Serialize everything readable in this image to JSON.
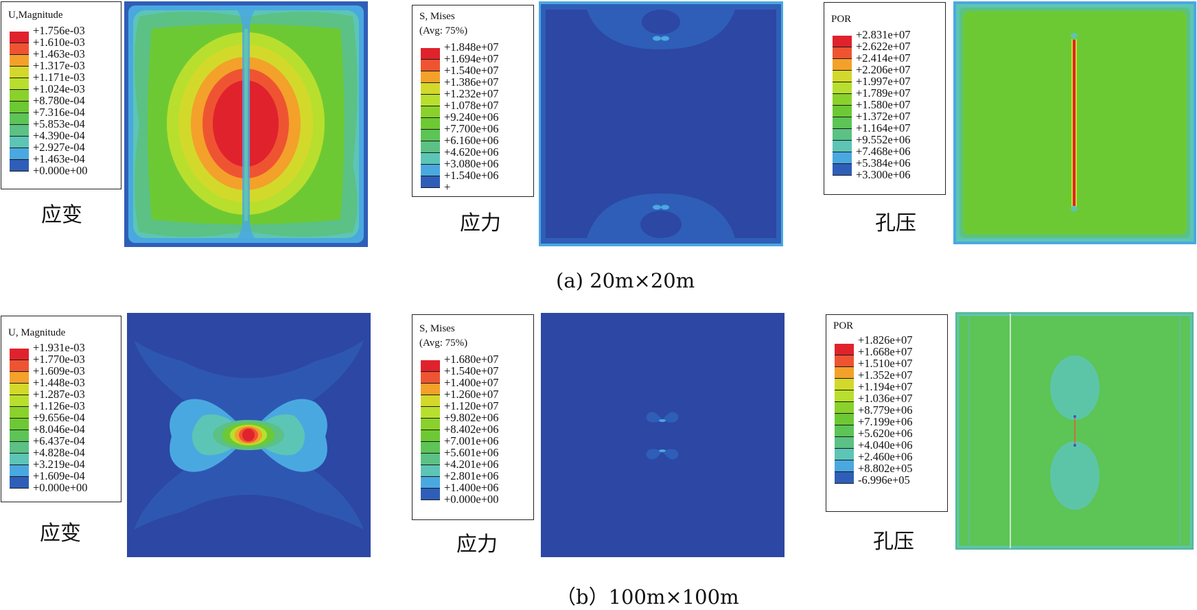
{
  "colors": [
    "#e0222d",
    "#ef5432",
    "#f3a12a",
    "#d3d92a",
    "#b8df2e",
    "#8ad12b",
    "#6dc933",
    "#5dc456",
    "#5bc184",
    "#5cc5b6",
    "#4aa8e0",
    "#2f5eb8",
    "#2c47a4"
  ],
  "plot_colors": {
    "dark_blue": "#2c47a4",
    "blue": "#2f5eb8",
    "light_blue": "#4aa8e0",
    "cyan": "#5cc5b6",
    "sea": "#5bc184",
    "green": "#5dc456",
    "green2": "#6dc933",
    "lime": "#b8df2e",
    "yellow": "#d3d92a",
    "orange": "#f3a12a",
    "red_orange": "#ef5432",
    "red": "#e0222d"
  },
  "panels": {
    "a_strain": {
      "legend_title": "U,Magnitude",
      "labels": [
        "+1.756e-03",
        "+1.610e-03",
        "+1.463e-03",
        "+1.317e-03",
        "+1.171e-03",
        "+1.024e-03",
        "+8.780e-04",
        "+7.316e-04",
        "+5.853e-04",
        "+4.390e-04",
        "+2.927e-04",
        "+1.463e-04",
        "+0.000e+00"
      ],
      "caption": "应变"
    },
    "a_stress": {
      "legend_title": "S, Mises\n(Avg: 75%)",
      "labels": [
        "+1.848e+07",
        "+1.694e+07",
        "+1.540e+07",
        "+1.386e+07",
        "+1.232e+07",
        "+1.078e+07",
        "+9.240e+06",
        "+7.700e+06",
        "+6.160e+06",
        "+4.620e+06",
        "+3.080e+06",
        "+1.540e+06",
        "+"
      ],
      "caption": "应力"
    },
    "a_por": {
      "legend_title": "POR",
      "labels": [
        "+2.831e+07",
        "+2.622e+07",
        "+2.414e+07",
        "+2.206e+07",
        "+1.997e+07",
        "+1.789e+07",
        "+1.580e+07",
        "+1.372e+07",
        "+1.164e+07",
        "+9.552e+06",
        "+7.468e+06",
        "+5.384e+06",
        "+3.300e+06"
      ],
      "caption": "孔压"
    },
    "b_strain": {
      "legend_title": "U, Magnitude",
      "labels": [
        "+1.931e-03",
        "+1.770e-03",
        "+1.609e-03",
        "+1.448e-03",
        "+1.287e-03",
        "+1.126e-03",
        "+9.656e-04",
        "+8.046e-04",
        "+6.437e-04",
        "+4.828e-04",
        "+3.219e-04",
        "+1.609e-04",
        "+0.000e+00"
      ],
      "caption": "应变"
    },
    "b_stress": {
      "legend_title": "S, Mises\n(Avg: 75%)",
      "labels": [
        "+1.680e+07",
        "+1.540e+07",
        "+1.400e+07",
        "+1.260e+07",
        "+1.120e+07",
        "+9.802e+06",
        "+8.402e+06",
        "+7.001e+06",
        "+5.601e+06",
        "+4.201e+06",
        "+2.801e+06",
        "+1.400e+06",
        "+0.000e+00"
      ],
      "caption": "应力"
    },
    "b_por": {
      "legend_title": "POR",
      "labels": [
        "+1.826e+07",
        "+1.668e+07",
        "+1.510e+07",
        "+1.352e+07",
        "+1.194e+07",
        "+1.036e+07",
        "+8.779e+06",
        "+7.199e+06",
        "+5.620e+06",
        "+4.040e+06",
        "+2.460e+06",
        "+8.802e+05",
        "-6.996e+05"
      ],
      "caption": "孔压"
    }
  },
  "subcaptions": {
    "a": "(a) 20m×20m",
    "b": "（b）100m×100m"
  }
}
